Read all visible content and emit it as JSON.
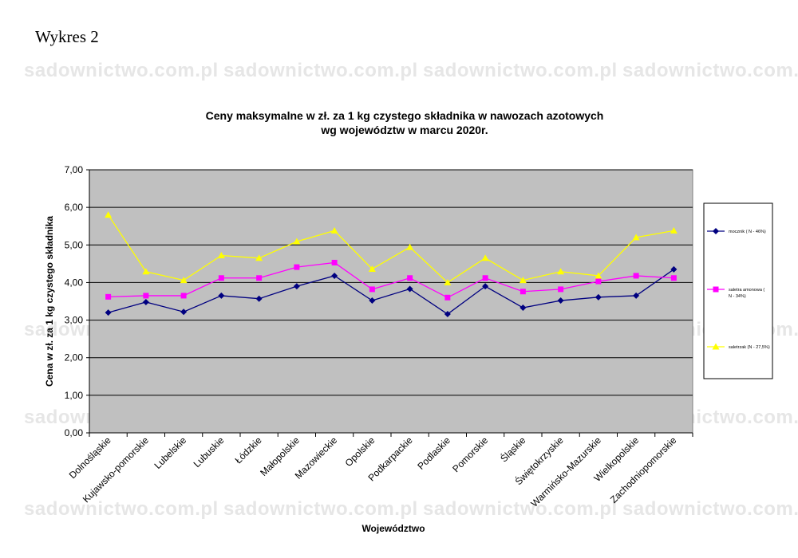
{
  "page": {
    "heading": "Wykres 2",
    "watermark": "sadownictwo.com.pl"
  },
  "chart_data": {
    "type": "line",
    "title": [
      "Ceny maksymalne  w zł. za 1 kg czystego składnika w nawozach azotowych",
      "wg województw w marcu 2020r."
    ],
    "xlabel": "Województwo",
    "ylabel": "Cena w zł. za 1 kg czystego składnika",
    "ylim": [
      0,
      7
    ],
    "yticks": [
      "0,00",
      "1,00",
      "2,00",
      "3,00",
      "4,00",
      "5,00",
      "6,00",
      "7,00"
    ],
    "grid": true,
    "plot_background": "#c0c0c0",
    "legend_position": "right",
    "categories": [
      "Dolnośląskie",
      "Kujawsko-pomorskie",
      "Lubelskie",
      "Lubuskie",
      "Łódzkie",
      "Małopolskie",
      "Mazowieckie",
      "Opolskie",
      "Podkarpackie",
      "Podlaskie",
      "Pomorskie",
      "Śląskie",
      "Świętokrzyskie",
      "Warmińsko-Mazurskie",
      "Wielkopolskie",
      "Zachodniopomorskie"
    ],
    "series": [
      {
        "name": "mocznik ( N - 46%)",
        "color": "#000080",
        "marker": "diamond",
        "values": [
          3.2,
          3.48,
          3.22,
          3.65,
          3.57,
          3.9,
          4.18,
          3.52,
          3.83,
          3.16,
          3.9,
          3.33,
          3.52,
          3.61,
          3.65,
          4.35
        ]
      },
      {
        "name": "saletra amonowa ( N - 34%)",
        "color": "#ff00ff",
        "marker": "square",
        "values": [
          3.62,
          3.65,
          3.65,
          4.12,
          4.12,
          4.41,
          4.53,
          3.82,
          4.12,
          3.6,
          4.12,
          3.76,
          3.82,
          4.03,
          4.18,
          4.12
        ]
      },
      {
        "name": "saletrzak (N - 27,5%)",
        "color": "#ffff00",
        "marker": "triangle",
        "values": [
          5.8,
          4.29,
          4.06,
          4.72,
          4.65,
          5.09,
          5.38,
          4.36,
          4.94,
          4.0,
          4.65,
          4.06,
          4.29,
          4.18,
          5.2,
          5.38
        ]
      }
    ]
  }
}
